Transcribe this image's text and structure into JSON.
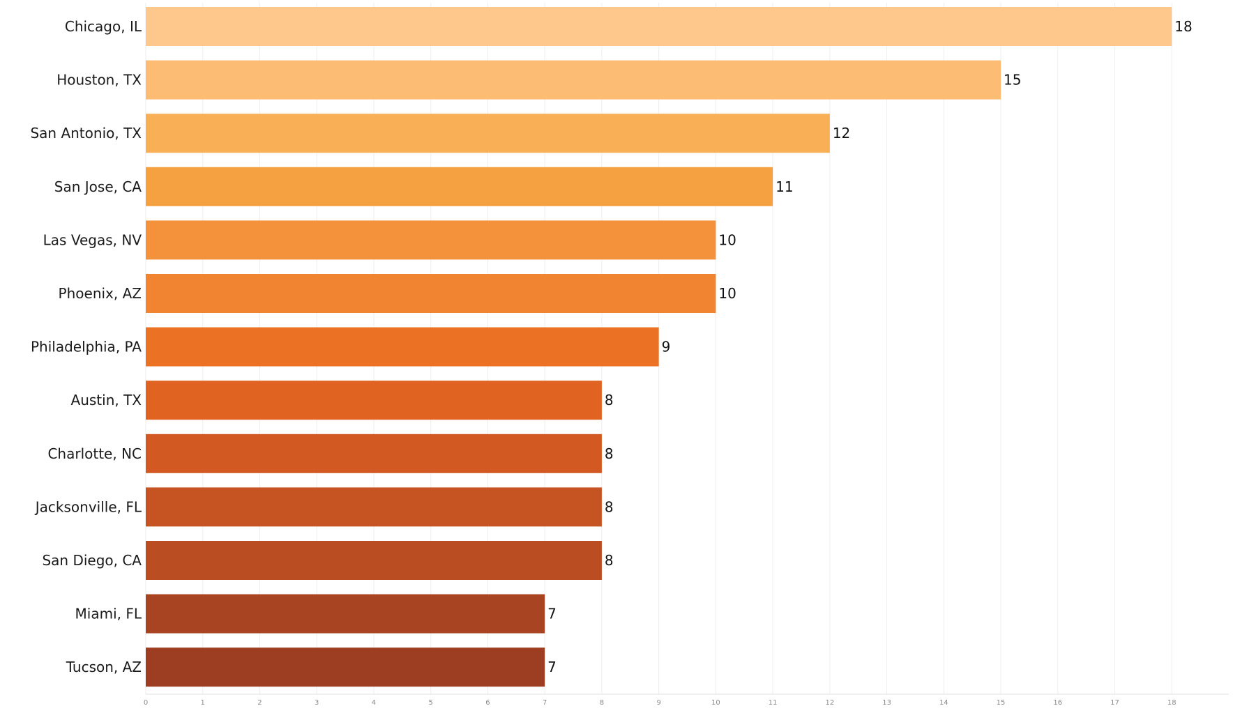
{
  "chart_data": {
    "type": "bar",
    "orientation": "horizontal",
    "title": "",
    "xlabel": "",
    "ylabel": "",
    "categories": [
      "Chicago, IL",
      "Houston, TX",
      "San Antonio, TX",
      "San Jose, CA",
      "Las Vegas, NV",
      "Phoenix, AZ",
      "Philadelphia, PA",
      "Austin, TX",
      "Charlotte, NC",
      "Jacksonville, FL",
      "San Diego, CA",
      "Miami, FL",
      "Tucson, AZ"
    ],
    "values": [
      18,
      15,
      12,
      11,
      10,
      10,
      9,
      8,
      8,
      8,
      8,
      7,
      7
    ],
    "value_labels": [
      "18",
      "15",
      "12",
      "11",
      "10",
      "10",
      "9",
      "8",
      "8",
      "8",
      "8",
      "7",
      "7"
    ],
    "xlim": [
      0,
      19
    ],
    "xticks": [
      0,
      1,
      2,
      3,
      4,
      5,
      6,
      7,
      8,
      9,
      10,
      11,
      12,
      13,
      14,
      15,
      16,
      17,
      18
    ],
    "xtick_labels": [
      "0",
      "1",
      "2",
      "3",
      "4",
      "5",
      "6",
      "7",
      "8",
      "9",
      "10",
      "11",
      "12",
      "13",
      "14",
      "15",
      "16",
      "17",
      "18"
    ],
    "grid": true,
    "legend": "none",
    "bar_colors": [
      "#fec88c",
      "#fcbc74",
      "#f8af56",
      "#f5a041",
      "#f3923a",
      "#f08431",
      "#eb7125",
      "#e16322",
      "#d35923",
      "#c65422",
      "#ba4e22",
      "#a94422",
      "#9d3d22"
    ]
  }
}
